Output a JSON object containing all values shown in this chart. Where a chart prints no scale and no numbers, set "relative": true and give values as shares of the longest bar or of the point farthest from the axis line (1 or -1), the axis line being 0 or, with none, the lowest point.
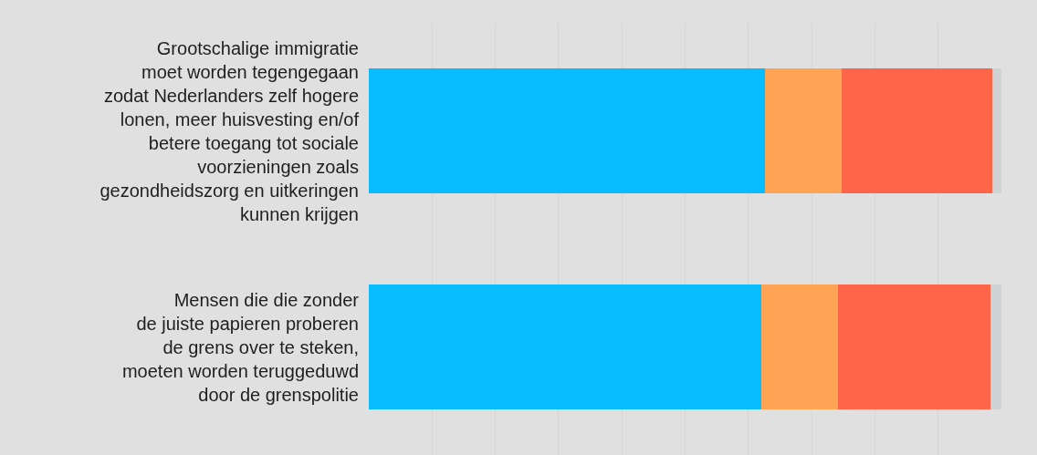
{
  "chart_data": {
    "type": "bar",
    "orientation": "horizontal",
    "stacked": true,
    "relative": true,
    "grid": "x",
    "categories": [
      "Grootschalige immigratie\nmoet worden tegengegaan\nzodat Nederlanders zelf hogere\nlonen, meer huisvesting en/of\nbetere toegang tot sociale\nvoorzieningen zoals\ngezondheidszorg en uitkeringen\nkunnen krijgen",
      "Mensen die die zonder\nde juiste papieren proberen\nde grens over te steken,\nmoeten worden teruggeduwd\ndoor de grenspolitie"
    ],
    "series": [
      {
        "color": "#08bdff",
        "values": [
          0.626,
          0.621
        ]
      },
      {
        "color": "#ffa354",
        "values": [
          0.121,
          0.12
        ]
      },
      {
        "color": "#ff6549",
        "values": [
          0.238,
          0.241
        ]
      },
      {
        "color": "#d0d2d4",
        "values": [
          0.015,
          0.018
        ]
      }
    ]
  }
}
